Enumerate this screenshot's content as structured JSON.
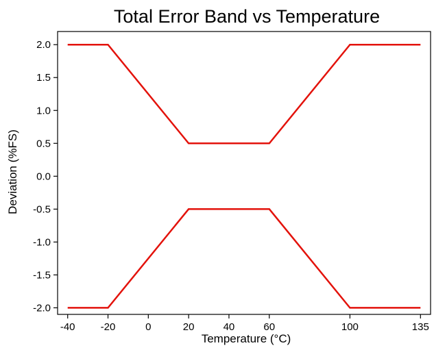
{
  "chart_data": {
    "type": "line",
    "title": "Total Error Band vs Temperature",
    "xlabel": "Temperature (°C)",
    "ylabel": "Deviation (%FS)",
    "x_ticks": [
      -40,
      -20,
      0,
      20,
      40,
      60,
      100,
      135
    ],
    "y_ticks": [
      -2.0,
      -1.5,
      -1.0,
      -0.5,
      0.0,
      0.5,
      1.0,
      1.5,
      2.0
    ],
    "x_tick_labels": [
      "-40",
      "-20",
      "0",
      "20",
      "40",
      "60",
      "100",
      "135"
    ],
    "y_tick_labels": [
      "-2.0",
      "-1.5",
      "-1.0",
      "-0.5",
      "0.0",
      "0.5",
      "1.0",
      "1.5",
      "2.0"
    ],
    "xlim": [
      -45,
      140
    ],
    "ylim": [
      -2.1,
      2.2
    ],
    "grid": false,
    "legend": "none",
    "series": [
      {
        "x": [
          -40,
          -20,
          20,
          60,
          100,
          135
        ],
        "y": [
          2.0,
          2.0,
          0.5,
          0.5,
          2.0,
          2.0
        ],
        "color": "#e3120b"
      },
      {
        "x": [
          -40,
          -20,
          20,
          60,
          100,
          135
        ],
        "y": [
          -2.0,
          -2.0,
          -0.5,
          -0.5,
          -2.0,
          -2.0
        ],
        "color": "#e3120b"
      }
    ]
  }
}
